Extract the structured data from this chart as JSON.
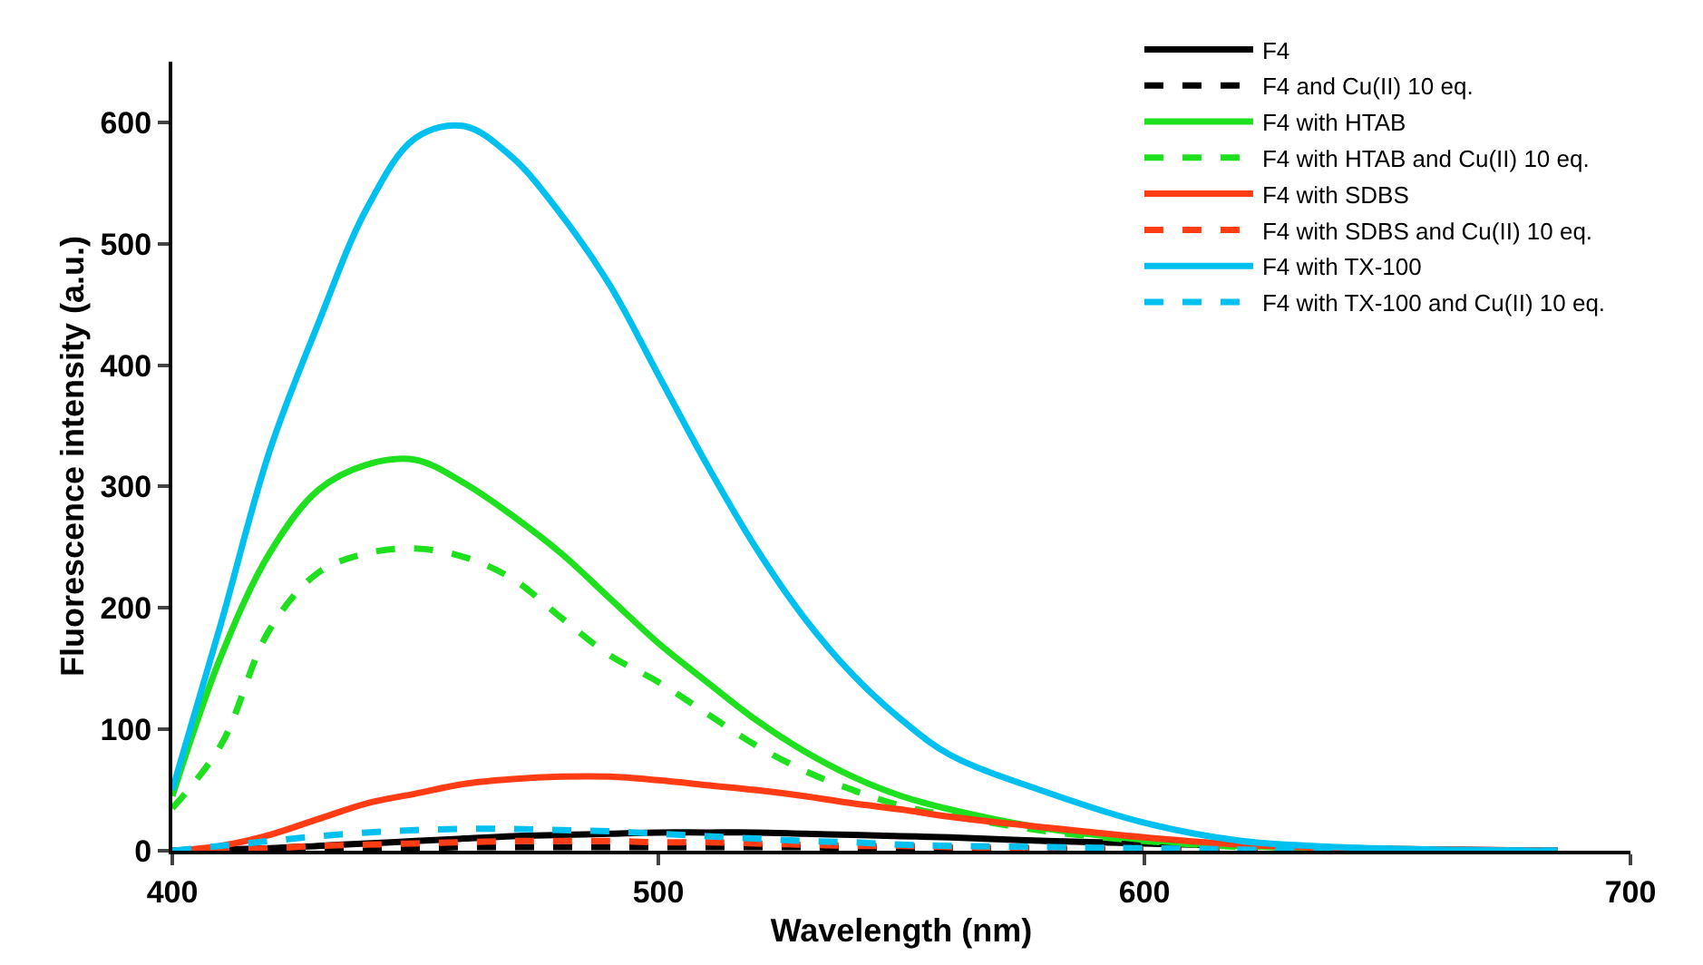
{
  "chart_data": {
    "type": "line",
    "xlabel": "Wavelength (nm)",
    "ylabel": "Fluorescence intensity (a.u.)",
    "xlim": [
      400,
      700
    ],
    "xticks": [
      400,
      500,
      600,
      700
    ],
    "ylim": [
      0,
      650
    ],
    "yticks": [
      0,
      100,
      200,
      300,
      400,
      500,
      600
    ],
    "legend": "top right",
    "marker": "none",
    "x": [
      400,
      410,
      420,
      430,
      440,
      450,
      460,
      470,
      480,
      490,
      500,
      510,
      520,
      530,
      540,
      550,
      560,
      580,
      600,
      620,
      640,
      660,
      685
    ],
    "series": [
      {
        "name": "F4",
        "color": "#000000",
        "line_style": "solid",
        "values": [
          0,
          1,
          2,
          4,
          6,
          8,
          10,
          12,
          13,
          14,
          15,
          15,
          15,
          14,
          13,
          12,
          11,
          8,
          6,
          4,
          2,
          1,
          0
        ]
      },
      {
        "name": "F4 and Cu(II) 10 eq.",
        "color": "#000000",
        "line_style": "dashed",
        "values": [
          0,
          0,
          1,
          1,
          2,
          2,
          3,
          3,
          3,
          3,
          3,
          3,
          3,
          3,
          2,
          2,
          2,
          1,
          1,
          1,
          0,
          0,
          0
        ]
      },
      {
        "name": "F4 with HTAB",
        "color": "#1ee01e",
        "line_style": "solid",
        "values": [
          45,
          160,
          245,
          297,
          318,
          322,
          303,
          276,
          245,
          208,
          171,
          139,
          108,
          82,
          61,
          45,
          34,
          18,
          9,
          4,
          2,
          null,
          null
        ]
      },
      {
        "name": "F4 with HTAB and Cu(II) 10 eq.",
        "color": "#1ee01e",
        "line_style": "dashed",
        "values": [
          35,
          87,
          182,
          229,
          245,
          249,
          242,
          224,
          192,
          161,
          139,
          113,
          87,
          66,
          50,
          37,
          29,
          16,
          8,
          3,
          null,
          null,
          null
        ]
      },
      {
        "name": "F4 with SDBS",
        "color": "#ff3c14",
        "line_style": "solid",
        "values": [
          0,
          4,
          13,
          26,
          39,
          47,
          55,
          59,
          61,
          61,
          58,
          54,
          50,
          45,
          39,
          34,
          28,
          19,
          11,
          5,
          2,
          1,
          0
        ]
      },
      {
        "name": "F4 with SDBS and Cu(II) 10 eq.",
        "color": "#ff3c14",
        "line_style": "dashed",
        "values": [
          0,
          1,
          2,
          4,
          5,
          6,
          7,
          8,
          8,
          8,
          7,
          7,
          6,
          5,
          4,
          4,
          3,
          2,
          1,
          1,
          0,
          0,
          0
        ]
      },
      {
        "name": "F4 with TX-100",
        "color": "#00c0f0",
        "line_style": "solid",
        "values": [
          50,
          187,
          329,
          434,
          529,
          587,
          597,
          571,
          524,
          466,
          392,
          318,
          250,
          192,
          145,
          108,
          79,
          48,
          23,
          8,
          3,
          1,
          0
        ]
      },
      {
        "name": "F4 with TX-100 and Cu(II) 10 eq.",
        "color": "#00c0f0",
        "line_style": "dashed",
        "values": [
          0,
          4,
          8,
          12,
          15,
          17,
          18,
          18,
          17,
          16,
          14,
          12,
          10,
          8,
          7,
          5,
          4,
          3,
          2,
          1,
          0,
          0,
          0
        ]
      }
    ]
  }
}
